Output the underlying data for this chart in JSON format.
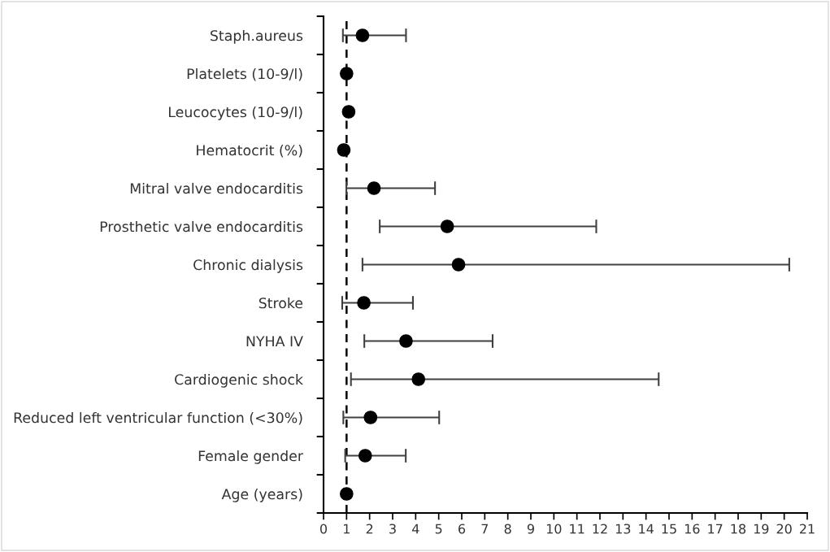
{
  "chart_data": {
    "type": "scatter",
    "orientation": "horizontal",
    "categories": [
      "Staph.aureus",
      "Platelets (10-9/l)",
      "Leucocytes (10-9/l)",
      "Hematocrit (%)",
      "Mitral valve endocarditis",
      "Prosthetic valve endocarditis",
      "Chronic dialysis",
      "Stroke",
      "NYHA IV",
      "Cardiogenic shock",
      "Reduced left ventricular function (<30%)",
      "Female gender",
      "Age (years)"
    ],
    "values": [
      1.69,
      1.0,
      1.09,
      0.88,
      2.19,
      5.37,
      5.86,
      1.75,
      3.58,
      4.12,
      2.04,
      1.81,
      1.0
    ],
    "errors": [
      [
        0.84,
        3.58
      ],
      null,
      null,
      null,
      [
        0.99,
        4.84
      ],
      [
        2.44,
        11.84
      ],
      [
        1.69,
        20.22
      ],
      [
        0.81,
        3.88
      ],
      [
        1.77,
        7.34
      ],
      [
        1.19,
        14.55
      ],
      [
        0.86,
        5.02
      ],
      [
        0.94,
        3.57
      ],
      null
    ],
    "color": "#000000",
    "marker": "circle",
    "xlim": [
      0,
      21
    ],
    "xticks": [
      0,
      1,
      2,
      3,
      4,
      5,
      6,
      7,
      8,
      9,
      10,
      11,
      12,
      13,
      14,
      15,
      16,
      17,
      18,
      19,
      20,
      21
    ],
    "ref_lines": [
      {
        "axis": "x",
        "value": 1,
        "line_style": "dashed",
        "color": "#000000"
      }
    ],
    "grid": false,
    "legend": false
  }
}
